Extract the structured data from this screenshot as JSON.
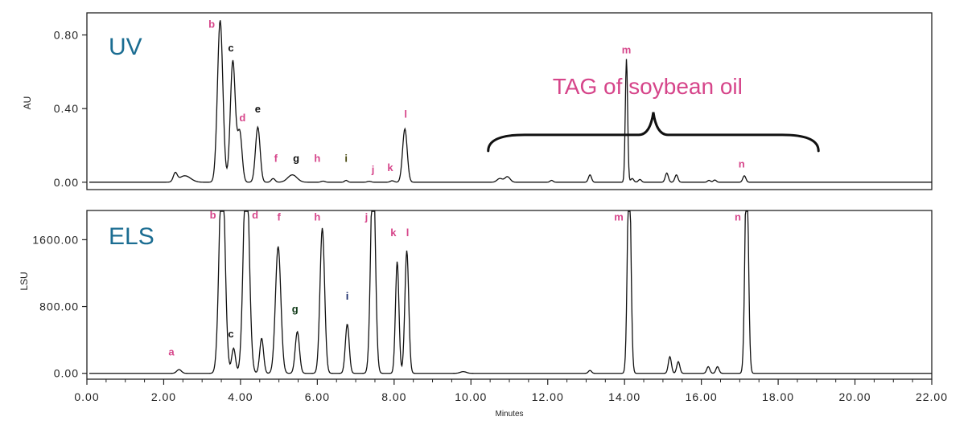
{
  "colors": {
    "trace": "#111111",
    "panel_title": "#1b6d92",
    "peak_pink": "#d6458a",
    "peak_black": "#111111",
    "peak_navy": "#1a2b6b",
    "peak_olive": "#4a4a10",
    "peak_darkgreen": "#103a18",
    "annotation": "#d6458a"
  },
  "chart_data": [
    {
      "type": "line",
      "panel_title": "UV",
      "ylabel": "AU",
      "xlim": [
        0,
        22
      ],
      "ylim": [
        -0.04,
        0.92
      ],
      "yticks": [
        0.0,
        0.4,
        0.8
      ],
      "ytick_labels": [
        "0.00",
        "0.40",
        "0.80"
      ],
      "grid": false,
      "baseline": 0.0,
      "peaks": [
        {
          "x": 2.3,
          "h": 0.045,
          "w": 0.05
        },
        {
          "x": 2.55,
          "h": 0.035,
          "w": 0.15
        },
        {
          "x": 3.47,
          "h": 0.88,
          "w": 0.07
        },
        {
          "x": 3.8,
          "h": 0.66,
          "w": 0.065
        },
        {
          "x": 3.98,
          "h": 0.27,
          "w": 0.06
        },
        {
          "x": 4.45,
          "h": 0.3,
          "w": 0.06
        },
        {
          "x": 4.85,
          "h": 0.02,
          "w": 0.05
        },
        {
          "x": 5.35,
          "h": 0.04,
          "w": 0.12
        },
        {
          "x": 6.15,
          "h": 0.006,
          "w": 0.05
        },
        {
          "x": 6.75,
          "h": 0.01,
          "w": 0.04
        },
        {
          "x": 7.35,
          "h": 0.005,
          "w": 0.05
        },
        {
          "x": 7.95,
          "h": 0.008,
          "w": 0.05
        },
        {
          "x": 8.28,
          "h": 0.29,
          "w": 0.06
        },
        {
          "x": 10.75,
          "h": 0.02,
          "w": 0.07
        },
        {
          "x": 10.95,
          "h": 0.03,
          "w": 0.07
        },
        {
          "x": 12.1,
          "h": 0.01,
          "w": 0.04
        },
        {
          "x": 13.1,
          "h": 0.04,
          "w": 0.04
        },
        {
          "x": 14.05,
          "h": 0.67,
          "w": 0.03
        },
        {
          "x": 14.2,
          "h": 0.02,
          "w": 0.04
        },
        {
          "x": 14.4,
          "h": 0.015,
          "w": 0.04
        },
        {
          "x": 15.1,
          "h": 0.05,
          "w": 0.04
        },
        {
          "x": 15.35,
          "h": 0.04,
          "w": 0.04
        },
        {
          "x": 16.2,
          "h": 0.01,
          "w": 0.04
        },
        {
          "x": 16.35,
          "h": 0.012,
          "w": 0.04
        },
        {
          "x": 17.12,
          "h": 0.035,
          "w": 0.04
        }
      ],
      "peak_labels": [
        {
          "label": "b",
          "x": 3.25,
          "y": 0.84,
          "color": "peak_pink"
        },
        {
          "label": "c",
          "x": 3.75,
          "y": 0.71,
          "color": "peak_black"
        },
        {
          "label": "d",
          "x": 4.05,
          "y": 0.33,
          "color": "peak_pink"
        },
        {
          "label": "e",
          "x": 4.45,
          "y": 0.38,
          "color": "peak_black"
        },
        {
          "label": "f",
          "x": 4.92,
          "y": 0.11,
          "color": "peak_pink"
        },
        {
          "label": "g",
          "x": 5.45,
          "y": 0.11,
          "color": "peak_black"
        },
        {
          "label": "h",
          "x": 6.0,
          "y": 0.11,
          "color": "peak_pink"
        },
        {
          "label": "i",
          "x": 6.75,
          "y": 0.11,
          "color": "peak_olive"
        },
        {
          "label": "j",
          "x": 7.45,
          "y": 0.05,
          "color": "peak_pink"
        },
        {
          "label": "k",
          "x": 7.9,
          "y": 0.06,
          "color": "peak_pink"
        },
        {
          "label": "l",
          "x": 8.3,
          "y": 0.35,
          "color": "peak_pink"
        },
        {
          "label": "m",
          "x": 14.05,
          "y": 0.7,
          "color": "peak_pink"
        },
        {
          "label": "n",
          "x": 17.05,
          "y": 0.08,
          "color": "peak_pink"
        }
      ],
      "annotation": {
        "text": "TAG of soybean oil",
        "x": 14.6,
        "y": 0.48,
        "color": "annotation",
        "brace": {
          "x_from": 10.45,
          "x_to": 19.05,
          "tip_x": 14.75,
          "y_base": 0.17,
          "y_tip": 0.38
        }
      }
    },
    {
      "type": "line",
      "panel_title": "ELS",
      "ylabel": "LSU",
      "xlabel": "Minutes",
      "xlim": [
        0,
        22
      ],
      "ylim": [
        -70,
        1950
      ],
      "yticks": [
        0,
        800,
        1600
      ],
      "ytick_labels": [
        "0.00",
        "800.00",
        "1600.00"
      ],
      "xticks": [
        0,
        2,
        4,
        6,
        8,
        10,
        12,
        14,
        16,
        18,
        20,
        22
      ],
      "xtick_labels": [
        "0.00",
        "2.00",
        "4.00",
        "6.00",
        "8.00",
        "10.00",
        "12.00",
        "14.00",
        "16.00",
        "18.00",
        "20.00",
        "22.00"
      ],
      "grid": false,
      "baseline": 0,
      "clip_max": 1940,
      "peaks": [
        {
          "x": 2.4,
          "h": 45,
          "w": 0.06
        },
        {
          "x": 3.52,
          "h": 2600,
          "w": 0.075
        },
        {
          "x": 3.82,
          "h": 300,
          "w": 0.05
        },
        {
          "x": 4.15,
          "h": 2600,
          "w": 0.075
        },
        {
          "x": 4.55,
          "h": 420,
          "w": 0.05
        },
        {
          "x": 4.98,
          "h": 1520,
          "w": 0.07
        },
        {
          "x": 5.48,
          "h": 500,
          "w": 0.055
        },
        {
          "x": 6.13,
          "h": 1740,
          "w": 0.06
        },
        {
          "x": 6.78,
          "h": 590,
          "w": 0.05
        },
        {
          "x": 7.45,
          "h": 2600,
          "w": 0.06
        },
        {
          "x": 8.08,
          "h": 1340,
          "w": 0.045
        },
        {
          "x": 8.33,
          "h": 1470,
          "w": 0.05
        },
        {
          "x": 9.8,
          "h": 20,
          "w": 0.08
        },
        {
          "x": 13.1,
          "h": 35,
          "w": 0.04
        },
        {
          "x": 14.12,
          "h": 2600,
          "w": 0.045
        },
        {
          "x": 15.18,
          "h": 200,
          "w": 0.04
        },
        {
          "x": 15.4,
          "h": 140,
          "w": 0.04
        },
        {
          "x": 16.18,
          "h": 80,
          "w": 0.04
        },
        {
          "x": 16.42,
          "h": 80,
          "w": 0.04
        },
        {
          "x": 17.18,
          "h": 2600,
          "w": 0.045
        }
      ],
      "peak_labels": [
        {
          "label": "a",
          "x": 2.2,
          "y": 215,
          "color": "peak_pink"
        },
        {
          "label": "b",
          "x": 3.28,
          "y": 1855,
          "color": "peak_pink"
        },
        {
          "label": "c",
          "x": 3.75,
          "y": 430,
          "color": "peak_black"
        },
        {
          "label": "d",
          "x": 4.38,
          "y": 1855,
          "color": "peak_pink"
        },
        {
          "label": "f",
          "x": 5.0,
          "y": 1830,
          "color": "peak_pink"
        },
        {
          "label": "g",
          "x": 5.42,
          "y": 730,
          "color": "peak_darkgreen"
        },
        {
          "label": "h",
          "x": 6.0,
          "y": 1830,
          "color": "peak_pink"
        },
        {
          "label": "i",
          "x": 6.78,
          "y": 880,
          "color": "peak_navy"
        },
        {
          "label": "j",
          "x": 7.28,
          "y": 1830,
          "color": "peak_pink"
        },
        {
          "label": "k",
          "x": 7.98,
          "y": 1640,
          "color": "peak_pink"
        },
        {
          "label": "l",
          "x": 8.35,
          "y": 1640,
          "color": "peak_pink"
        },
        {
          "label": "m",
          "x": 13.85,
          "y": 1830,
          "color": "peak_pink"
        },
        {
          "label": "n",
          "x": 16.95,
          "y": 1830,
          "color": "peak_pink"
        }
      ]
    }
  ]
}
